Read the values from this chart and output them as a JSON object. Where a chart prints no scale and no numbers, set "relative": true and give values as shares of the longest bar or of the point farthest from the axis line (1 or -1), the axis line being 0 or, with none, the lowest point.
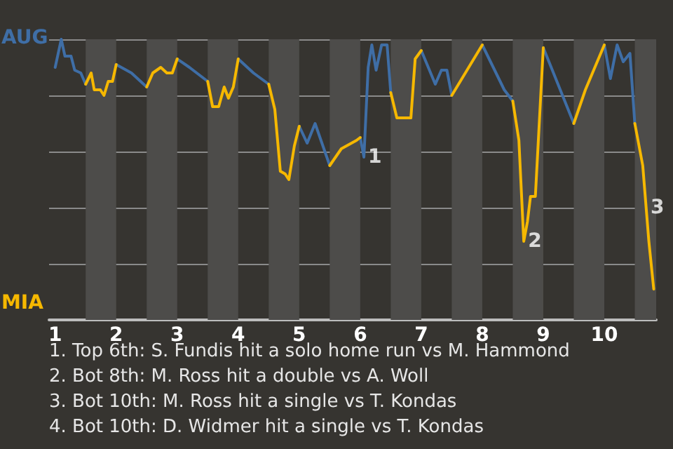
{
  "chart_data": {
    "type": "line",
    "relative": true,
    "series": [
      {
        "color": "#3f6ea6",
        "x": [
          1,
          1.1,
          1.16,
          1.26,
          1.32,
          1.42,
          1.5,
          1.59,
          1.64,
          1.74,
          1.8,
          1.87,
          1.94,
          2,
          2.25,
          2.5,
          2.6,
          2.73,
          2.83,
          2.92,
          3,
          3.2,
          3.5,
          3.58,
          3.68,
          3.77,
          3.84,
          3.92,
          4,
          4.25,
          4.5,
          4.6,
          4.69,
          4.77,
          4.83,
          4.92,
          5,
          5.13,
          5.26,
          5.5,
          5.69,
          5.94,
          6,
          6.06,
          6.13,
          6.19,
          6.26,
          6.35,
          6.44,
          6.5,
          6.6,
          6.83,
          6.9,
          7,
          7.23,
          7.33,
          7.42,
          7.5,
          7.75,
          8,
          8.36,
          8.5,
          8.6,
          8.68,
          8.74,
          8.79,
          8.87,
          9,
          9.5,
          9.69,
          10,
          10.1,
          10.21,
          10.31,
          10.42,
          10.5
        ],
        "values": [
          0.9,
          1,
          0.94,
          0.94,
          0.89,
          0.88,
          0.84,
          null,
          null,
          null,
          null,
          null,
          null,
          0.91,
          0.88,
          0.83,
          null,
          null,
          null,
          null,
          0.93,
          0.9,
          0.85,
          null,
          null,
          null,
          null,
          null,
          0.93,
          0.88,
          0.84,
          null,
          null,
          null,
          null,
          null,
          0.69,
          0.63,
          0.7,
          0.55,
          null,
          null,
          0.65,
          0.58,
          0.9,
          0.98,
          0.89,
          0.98,
          0.98,
          0.81,
          null,
          null,
          null,
          0.96,
          0.84,
          0.89,
          0.89,
          0.8,
          null,
          0.98,
          0.82,
          0.78,
          null,
          null,
          null,
          null,
          null,
          0.97,
          0.7,
          null,
          0.98,
          0.86,
          0.98,
          0.92,
          0.95,
          0.7
        ]
      },
      {
        "color": "#f6b800",
        "x": [
          1.5,
          1.59,
          1.64,
          1.74,
          1.8,
          1.87,
          1.94,
          2,
          2.25,
          2.5,
          2.6,
          2.73,
          2.83,
          2.92,
          3,
          3.2,
          3.5,
          3.58,
          3.68,
          3.77,
          3.84,
          3.92,
          4,
          4.25,
          4.5,
          4.6,
          4.69,
          4.77,
          4.83,
          4.92,
          5,
          5.13,
          5.26,
          5.5,
          5.69,
          5.94,
          6,
          6.06,
          6.13,
          6.19,
          6.26,
          6.35,
          6.44,
          6.5,
          6.6,
          6.83,
          6.9,
          7,
          7.23,
          7.33,
          7.42,
          7.5,
          8,
          8.36,
          8.5,
          8.6,
          8.68,
          8.74,
          8.79,
          8.87,
          9,
          9.25,
          9.5,
          9.69,
          10,
          10.1,
          10.21,
          10.31,
          10.42,
          10.5,
          10.63,
          10.73,
          10.81
        ],
        "values": [
          0.84,
          0.88,
          0.82,
          0.82,
          0.8,
          0.85,
          0.85,
          0.91,
          null,
          0.83,
          0.88,
          0.9,
          0.88,
          0.88,
          0.93,
          null,
          0.85,
          0.76,
          0.76,
          0.83,
          0.79,
          0.83,
          0.93,
          null,
          0.84,
          0.75,
          0.53,
          0.52,
          0.5,
          0.62,
          0.69,
          null,
          null,
          0.55,
          0.61,
          0.64,
          0.65,
          null,
          null,
          null,
          null,
          null,
          null,
          0.81,
          0.72,
          0.72,
          0.93,
          0.96,
          null,
          null,
          null,
          0.8,
          0.98,
          null,
          0.78,
          0.64,
          0.28,
          0.35,
          0.44,
          0.44,
          0.97,
          null,
          0.7,
          0.82,
          0.98,
          null,
          null,
          null,
          null,
          0.7,
          0.55,
          0.28,
          0.11
        ]
      }
    ],
    "xlim": [
      0.9,
      10.85
    ],
    "xticks": [
      1,
      2,
      3,
      4,
      5,
      6,
      7,
      8,
      9,
      10
    ],
    "grid": "y",
    "bands": [
      {
        "axis": "x",
        "from": 1.5,
        "to": 2,
        "color": "#4d4c4a"
      },
      {
        "axis": "x",
        "from": 2.5,
        "to": 3,
        "color": "#4d4c4a"
      },
      {
        "axis": "x",
        "from": 3.5,
        "to": 4,
        "color": "#4d4c4a"
      },
      {
        "axis": "x",
        "from": 4.5,
        "to": 5,
        "color": "#4d4c4a"
      },
      {
        "axis": "x",
        "from": 5.5,
        "to": 6,
        "color": "#4d4c4a"
      },
      {
        "axis": "x",
        "from": 6.5,
        "to": 7,
        "color": "#4d4c4a"
      },
      {
        "axis": "x",
        "from": 7.5,
        "to": 8,
        "color": "#4d4c4a"
      },
      {
        "axis": "x",
        "from": 8.5,
        "to": 9,
        "color": "#4d4c4a"
      },
      {
        "axis": "x",
        "from": 9.5,
        "to": 10,
        "color": "#4d4c4a"
      },
      {
        "axis": "x",
        "from": 10.5,
        "to": 10.85,
        "color": "#4d4c4a"
      }
    ],
    "annotations": [
      "AUG",
      "MIA",
      {
        "text": "1",
        "x": 6.06,
        "y": 0.58
      },
      {
        "text": "2",
        "x": 8.68,
        "y": 0.28
      },
      {
        "text": "3",
        "x": 10.69,
        "y": 0.4
      },
      "1. Top 6th: S. Fundis hit a solo home run vs M. Hammond",
      "2. Bot 8th: M. Ross hit a double vs A. Woll",
      "3. Bot 10th: M. Ross hit a single vs T. Kondas",
      "4. Bot 10th: D. Widmer hit a single vs T. Kondas"
    ]
  }
}
